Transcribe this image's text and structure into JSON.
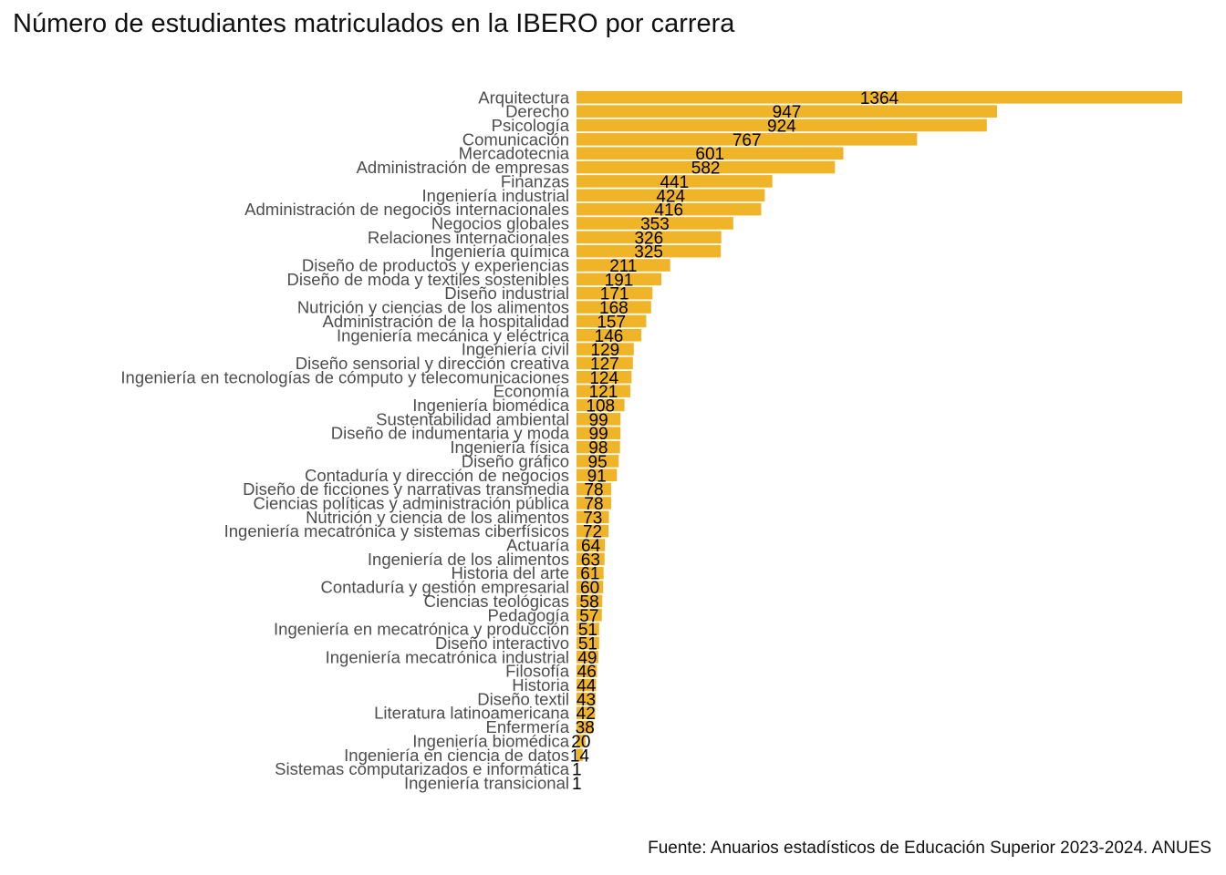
{
  "chart_data": {
    "type": "bar",
    "orientation": "horizontal",
    "title": "Número de estudiantes matriculados en la IBERO por carrera",
    "caption": "Fuente: Anuarios estadísticos de Educación Superior 2023-2024. ANUES",
    "xlabel": "",
    "ylabel": "",
    "grid": false,
    "bar_color": "#F0B429",
    "categories": [
      "Arquitectura",
      "Derecho",
      "Psicología",
      "Comunicación",
      "Mercadotecnia",
      "Administración de empresas",
      "Finanzas",
      "Ingeniería industrial",
      "Administración de negocios internacionales",
      "Negocios globales",
      "Relaciones internacionales",
      "Ingeniería química",
      "Diseño de productos y experiencias",
      "Diseño de moda y textiles sostenibles",
      "Diseño industrial",
      "Nutrición y ciencias de los alimentos",
      "Administración de la hospitalidad",
      "Ingeniería mecánica y eléctrica",
      "Ingeniería civil",
      "Diseño sensorial y dirección creativa",
      "Ingeniería en tecnologías de cómputo y telecomunicaciones",
      "Economía",
      "Ingeniería biomédica",
      "Sustentabilidad ambiental",
      "Diseño de indumentaria y moda",
      "Ingeniería física",
      "Diseño gráfico",
      "Contaduría y dirección de negocios",
      "Diseño de ficciones y narrativas transmedia",
      "Ciencias políticas y administración pública",
      "Nutrición y ciencia de los alimentos",
      "Ingeniería mecatrónica y sistemas ciberfísicos",
      "Actuaría",
      "Ingeniería de los alimentos",
      "Historia del arte",
      "Contaduría y gestión empresarial",
      "Ciencias teológicas",
      "Pedagogía",
      "Ingeniería en mecatrónica y producción",
      "Diseño interactivo",
      "Ingeniería mecatrónica industrial",
      "Filosofía",
      "Historia",
      "Diseño textil",
      "Literatura latinoamericana",
      "Enfermería",
      "Ingeniería biomédica",
      "Ingeniería en ciencia de datos",
      "Sistemas computarizados e informática",
      "Ingeniería transicional"
    ],
    "values": [
      1364,
      947,
      924,
      767,
      601,
      582,
      441,
      424,
      416,
      353,
      326,
      325,
      211,
      191,
      171,
      168,
      157,
      146,
      129,
      127,
      124,
      121,
      108,
      99,
      99,
      98,
      95,
      91,
      78,
      78,
      73,
      72,
      64,
      63,
      61,
      60,
      58,
      57,
      51,
      51,
      49,
      46,
      44,
      43,
      42,
      38,
      20,
      14,
      1,
      1
    ],
    "xlim": [
      0,
      1364
    ]
  }
}
